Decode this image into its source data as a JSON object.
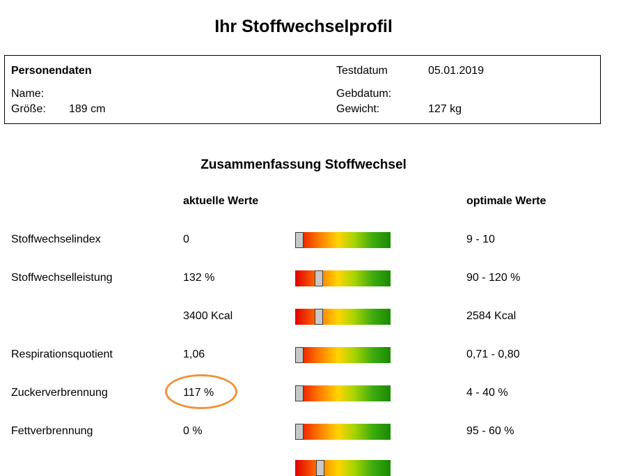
{
  "title": "Ihr Stoffwechselprofil",
  "personal": {
    "heading": "Personendaten",
    "name_label": "Name:",
    "height_label": "Größe:",
    "height_value": "189 cm",
    "testdate_label": "Testdatum",
    "testdate_value": "05.01.2019",
    "birthdate_label": "Gebdatum:",
    "weight_label": "Gewicht:",
    "weight_value": "127 kg"
  },
  "summary": {
    "title": "Zusammenfassung Stoffwechsel",
    "current_header": "aktuelle Werte",
    "optimal_header": "optimale Werte",
    "rows": [
      {
        "label": "Stoffwechselindex",
        "current": "0",
        "optimal": "9 - 10",
        "gauge_level": 0.0
      },
      {
        "label": "Stoffwechselleistung",
        "current": "132 %",
        "optimal": "90 - 120 %",
        "gauge_level": 0.22
      },
      {
        "label": "",
        "current": "3400 Kcal",
        "optimal": "2584 Kcal",
        "gauge_level": 0.22
      },
      {
        "label": "Respirationsquotient",
        "current": "1,06",
        "optimal": "0,71 - 0,80",
        "gauge_level": 0.0
      },
      {
        "label": "Zuckerverbrennung",
        "current": "117 %",
        "optimal": "4 - 40 %",
        "gauge_level": 0.0,
        "highlighted": true
      },
      {
        "label": "Fettverbrennung",
        "current": "0 %",
        "optimal": "95 - 60 %",
        "gauge_level": 0.0
      }
    ]
  },
  "colors": {
    "highlight_circle": "#f0923a",
    "gauge_start": "#e00000",
    "gauge_mid": "#ffd400",
    "gauge_end": "#1a8a00"
  }
}
